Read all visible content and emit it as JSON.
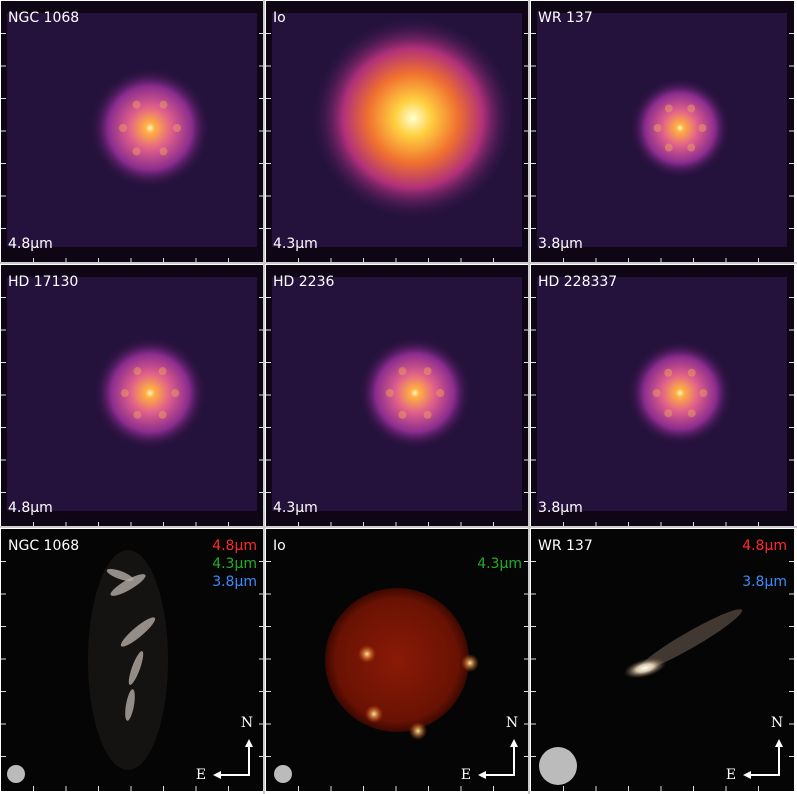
{
  "panels": [
    {
      "name": "NGC 1068",
      "wavelength": "4.8µm"
    },
    {
      "name": "Io",
      "wavelength": "4.3µm"
    },
    {
      "name": "WR 137",
      "wavelength": "3.8µm"
    },
    {
      "name": "HD 17130",
      "wavelength": "4.8µm"
    },
    {
      "name": "HD 2236",
      "wavelength": "4.3µm"
    },
    {
      "name": "HD 228337",
      "wavelength": "3.8µm"
    }
  ],
  "rgb_panels": [
    {
      "name": "NGC 1068",
      "bands": [
        {
          "label": "4.8µm",
          "channel": "red",
          "color": "#ff2a2a"
        },
        {
          "label": "4.3µm",
          "channel": "green",
          "color": "#22b022"
        },
        {
          "label": "3.8µm",
          "channel": "blue",
          "color": "#3a8cff"
        }
      ]
    },
    {
      "name": "Io",
      "bands": [
        {
          "label": "4.3µm",
          "channel": "green",
          "color": "#22b022"
        }
      ]
    },
    {
      "name": "WR 137",
      "bands": [
        {
          "label": "4.8µm",
          "channel": "red",
          "color": "#ff2a2a"
        },
        {
          "label": "3.8µm",
          "channel": "blue",
          "color": "#3a8cff"
        }
      ]
    }
  ],
  "compass": {
    "north": "N",
    "east": "E"
  }
}
